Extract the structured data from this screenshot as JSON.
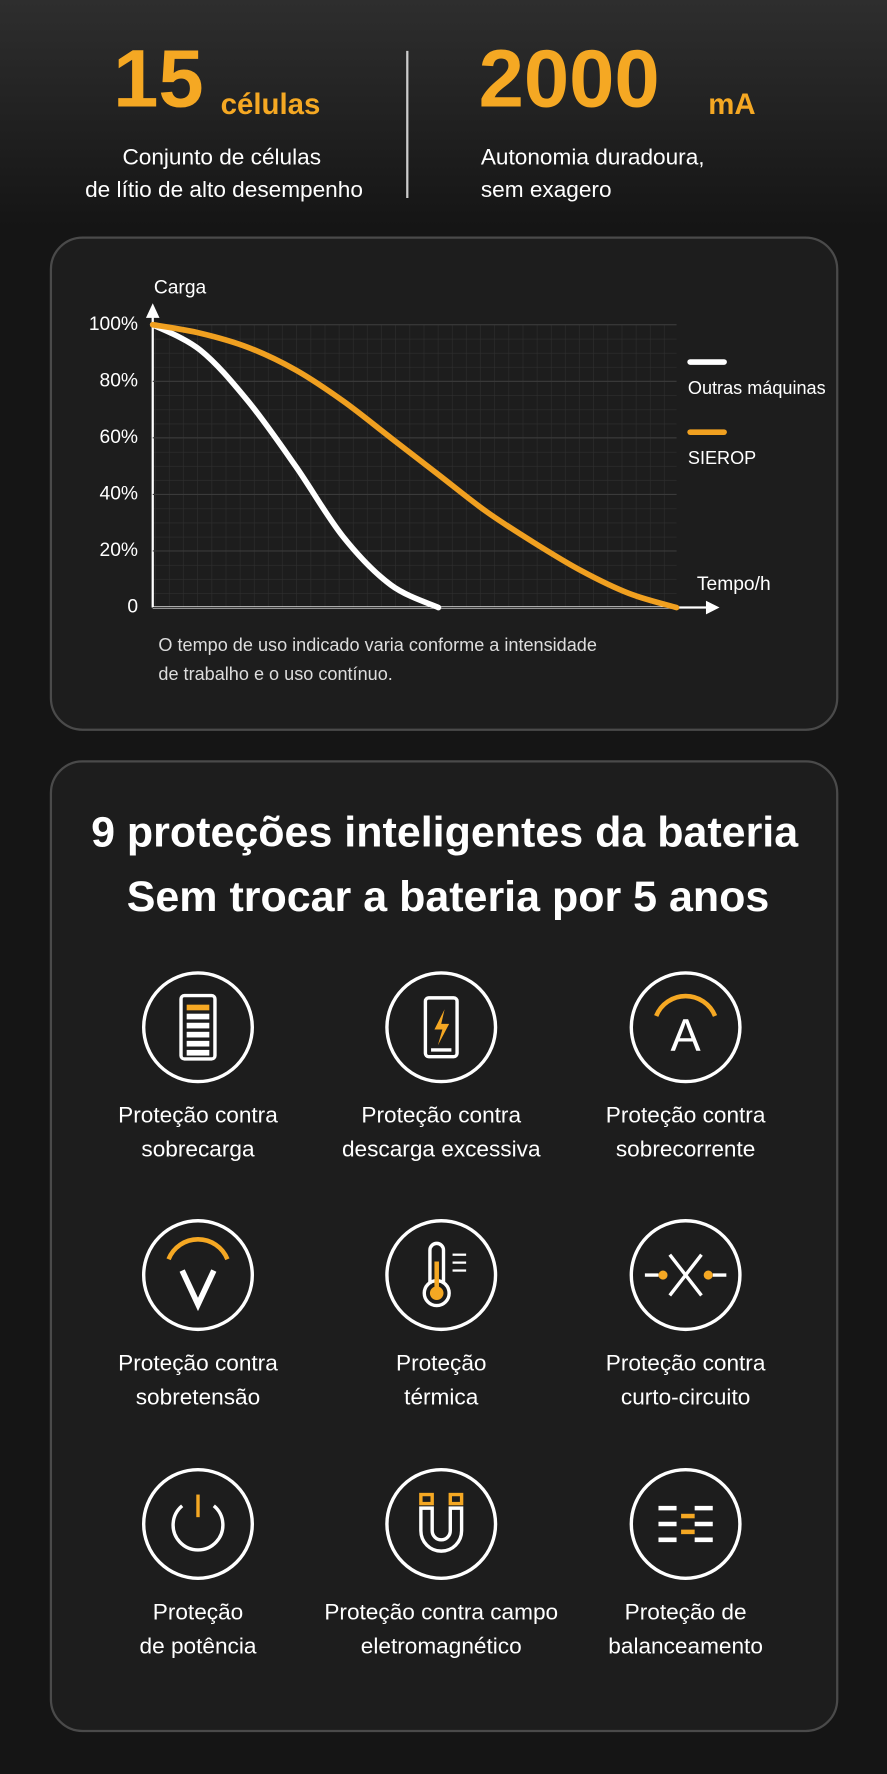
{
  "header": {
    "stats": [
      {
        "number": "15",
        "unit": "células",
        "description": [
          "Conjunto de células",
          "de lítio de alto desempenho"
        ]
      },
      {
        "number": "2000",
        "unit": "mA",
        "description": [
          "Autonomia duradoura,",
          "sem exagero"
        ]
      }
    ]
  },
  "chart_data": {
    "type": "line",
    "y_label": "Carga",
    "x_label": "Tempo/h",
    "categories": [
      null,
      null,
      null,
      null,
      null,
      null,
      null,
      null,
      null,
      null,
      null,
      null
    ],
    "series": [
      {
        "name": "Outras máquinas",
        "color": "#ffffff",
        "values": [
          100,
          91,
          73,
          50,
          25,
          8,
          0,
          null,
          null,
          null,
          null,
          null
        ]
      },
      {
        "name": "SIEROP",
        "color": "#f0a020",
        "values": [
          100,
          97,
          92,
          84,
          73,
          60,
          47,
          34,
          23,
          13,
          5,
          0
        ]
      }
    ],
    "ylim": [
      0,
      100
    ],
    "yticks": [
      0,
      {
        "value": 20,
        "label": "20%"
      },
      {
        "value": 40,
        "label": "40%"
      },
      {
        "value": 60,
        "label": "60%"
      },
      {
        "value": 80,
        "label": "80%"
      },
      {
        "value": 100,
        "label": "100%"
      }
    ],
    "grid": true,
    "legend": "right",
    "note": [
      "O tempo de uso indicado varia conforme a intensidade",
      "de trabalho e o uso contínuo."
    ]
  },
  "protections": {
    "title": [
      "9 proteções inteligentes da bateria",
      "Sem trocar a bateria por 5 anos"
    ],
    "items": [
      {
        "lines": [
          "Proteção contra",
          "sobrecarga"
        ]
      },
      {
        "lines": [
          "Proteção contra",
          "descarga excessiva"
        ]
      },
      {
        "lines": [
          "Proteção contra",
          "sobrecorrente"
        ]
      },
      {
        "lines": [
          "Proteção contra",
          "sobretensão"
        ]
      },
      {
        "lines": [
          "Proteção",
          "térmica"
        ]
      },
      {
        "lines": [
          "Proteção contra",
          "curto-circuito"
        ]
      },
      {
        "lines": [
          "Proteção",
          "de potência"
        ]
      },
      {
        "lines": [
          "Proteção contra campo",
          "eletromagnético"
        ]
      },
      {
        "lines": [
          "Proteção de",
          "balanceamento"
        ]
      }
    ]
  }
}
